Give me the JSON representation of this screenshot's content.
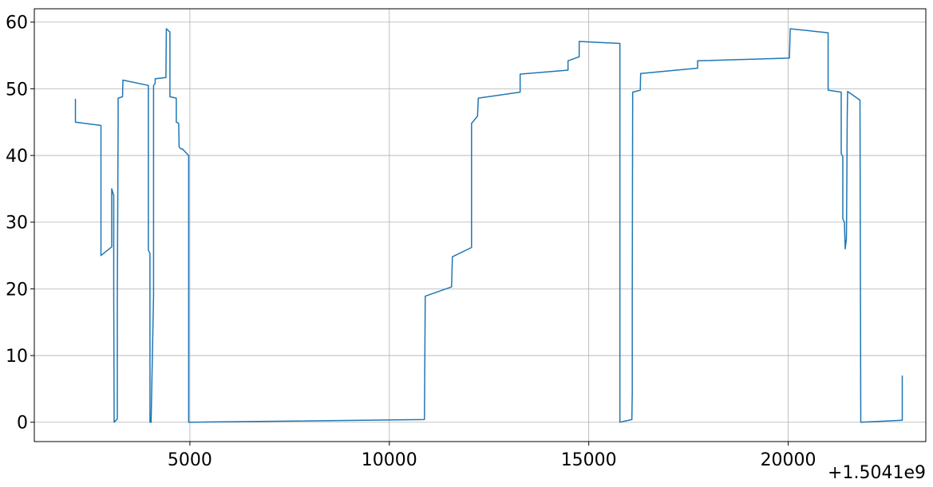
{
  "chart_data": {
    "type": "line",
    "title": "",
    "xlabel": "",
    "ylabel": "",
    "x_offset_label": "+1.5041e9",
    "xlim": [
      1100,
      23450
    ],
    "ylim": [
      -2.9,
      62
    ],
    "grid": true,
    "line_color": "#1f77b4",
    "x_ticks": [
      5000,
      10000,
      15000,
      20000
    ],
    "y_ticks": [
      0,
      10,
      20,
      30,
      40,
      50,
      60
    ],
    "series": [
      {
        "x": [
          2130,
          2130,
          2770,
          2770,
          3040,
          3040,
          3090,
          3090,
          3100,
          3100,
          3180,
          3180,
          3200,
          3200,
          3200,
          3310,
          3320,
          3320,
          3960,
          3960,
          4000,
          4000,
          4030,
          4030,
          4090,
          4090,
          4130,
          4130,
          4400,
          4410,
          4500,
          4500,
          4660,
          4660,
          4720,
          4730,
          4770,
          4810,
          4970,
          4970,
          4990,
          10880,
          10900,
          11560,
          11580,
          12060,
          12060,
          12210,
          12230,
          13280,
          13280,
          14480,
          14480,
          14760,
          14760,
          15780,
          15780,
          16080,
          16090,
          16090,
          16100,
          16290,
          16300,
          17730,
          17730,
          20030,
          20050,
          21000,
          21000,
          21330,
          21330,
          21370,
          21370,
          21410,
          21430,
          21460,
          21470,
          21480,
          21490,
          21800,
          21820,
          22860,
          22860
        ],
        "y": [
          48.5,
          45,
          44.5,
          25,
          26.3,
          35,
          34,
          20,
          0,
          0,
          0.5,
          19,
          44.5,
          45,
          48.6,
          48.8,
          51.3,
          51.3,
          50.5,
          25.8,
          25.3,
          0,
          0,
          0.5,
          19,
          50.5,
          50.8,
          51.5,
          51.7,
          59,
          58.5,
          48.8,
          48.6,
          45,
          44.8,
          41.3,
          41,
          41,
          40,
          0,
          0,
          0.4,
          18.9,
          20.3,
          24.8,
          26.2,
          44.8,
          45.9,
          48.6,
          49.5,
          52.2,
          52.8,
          54.2,
          54.8,
          57.1,
          56.8,
          0,
          0.4,
          4.5,
          20,
          49.5,
          49.8,
          52.3,
          53.1,
          54.2,
          54.6,
          59,
          58.4,
          49.8,
          49.5,
          40.3,
          39.8,
          30.5,
          30,
          26,
          27.5,
          35,
          45.5,
          49.6,
          48.3,
          0,
          0.3,
          7
        ]
      }
    ]
  }
}
